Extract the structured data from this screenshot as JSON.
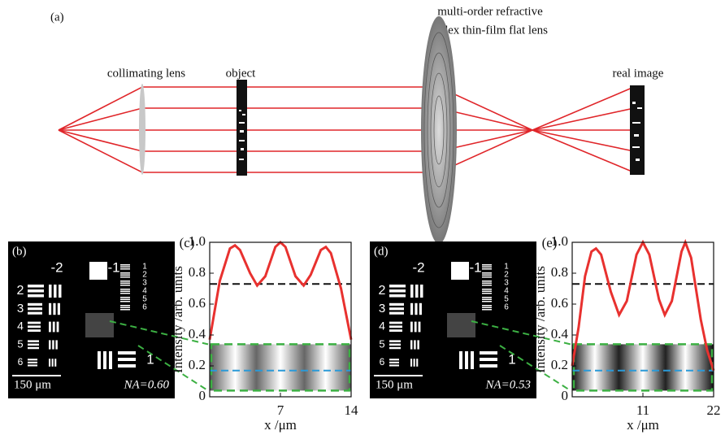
{
  "diagram": {
    "panel": "(a)",
    "collimating_lens": "collimating lens",
    "object": "object",
    "flat_lens": [
      "multi-order refractive",
      "index thin-film flat lens"
    ],
    "real_image": "real image"
  },
  "images": [
    {
      "panel": "(b)",
      "groups": [
        "-2",
        "-1"
      ],
      "left_elements": [
        "2",
        "3",
        "4",
        "5",
        "6"
      ],
      "right_elements": [
        "1",
        "2",
        "3",
        "4",
        "5",
        "6"
      ],
      "bottom_element": "1",
      "scale": "150 μm",
      "na": "NA=0.60"
    },
    {
      "panel": "(d)",
      "groups": [
        "-2",
        "-1"
      ],
      "left_elements": [
        "2",
        "3",
        "4",
        "5",
        "6"
      ],
      "right_elements": [
        "1",
        "2",
        "3",
        "4",
        "5",
        "6"
      ],
      "bottom_element": "1",
      "scale": "150 μm",
      "na": "NA=0.53"
    }
  ],
  "chart_data": [
    {
      "type": "line",
      "panel": "(c)",
      "xlabel": "x /μm",
      "ylabel": "Intensity /arb. units",
      "color": "#e8312f",
      "x": [
        0,
        1,
        2,
        2.5,
        3,
        4,
        4.7,
        5.5,
        6.5,
        7,
        7.5,
        8.5,
        9.3,
        10,
        11,
        11.5,
        12,
        13,
        14
      ],
      "values": [
        0.37,
        0.75,
        0.96,
        0.98,
        0.95,
        0.8,
        0.72,
        0.78,
        0.97,
        1.0,
        0.97,
        0.78,
        0.72,
        0.79,
        0.95,
        0.97,
        0.93,
        0.7,
        0.37
      ],
      "xlim": [
        0,
        14
      ],
      "ylim": [
        0,
        1.0
      ],
      "xticks": [
        7,
        14
      ],
      "yticks": [
        0,
        0.2,
        0.4,
        0.6,
        0.8,
        {
          "value": 1,
          "label": "1.0"
        }
      ],
      "hlines": [
        {
          "value": 0.73,
          "color": "#111111"
        },
        {
          "value": 0.17,
          "color": "#2a9ad8"
        }
      ],
      "box": {
        "ylim": [
          0.04,
          0.34
        ],
        "color": "#3cb043"
      }
    },
    {
      "type": "line",
      "panel": "(e)",
      "xlabel": "x /μm",
      "ylabel": "Intensity /arb. units",
      "color": "#e8312f",
      "x": [
        0,
        1,
        2,
        3,
        3.7,
        4.5,
        6,
        7.3,
        8.5,
        10,
        11,
        12,
        13.5,
        14.4,
        15.5,
        17,
        17.6,
        18.5,
        20,
        21,
        22
      ],
      "values": [
        0.2,
        0.45,
        0.78,
        0.94,
        0.96,
        0.92,
        0.68,
        0.53,
        0.62,
        0.92,
        1.0,
        0.92,
        0.63,
        0.53,
        0.62,
        0.94,
        1.0,
        0.9,
        0.5,
        0.3,
        0.17
      ],
      "xlim": [
        0,
        22
      ],
      "ylim": [
        0,
        1.0
      ],
      "xticks": [
        11,
        22
      ],
      "yticks": [
        0,
        0.2,
        0.4,
        0.6,
        0.8,
        {
          "value": 1,
          "label": "1.0"
        }
      ],
      "hlines": [
        {
          "value": 0.73,
          "color": "#111111"
        },
        {
          "value": 0.17,
          "color": "#2a9ad8"
        }
      ],
      "box": {
        "ylim": [
          0.04,
          0.34
        ],
        "color": "#3cb043"
      }
    }
  ]
}
